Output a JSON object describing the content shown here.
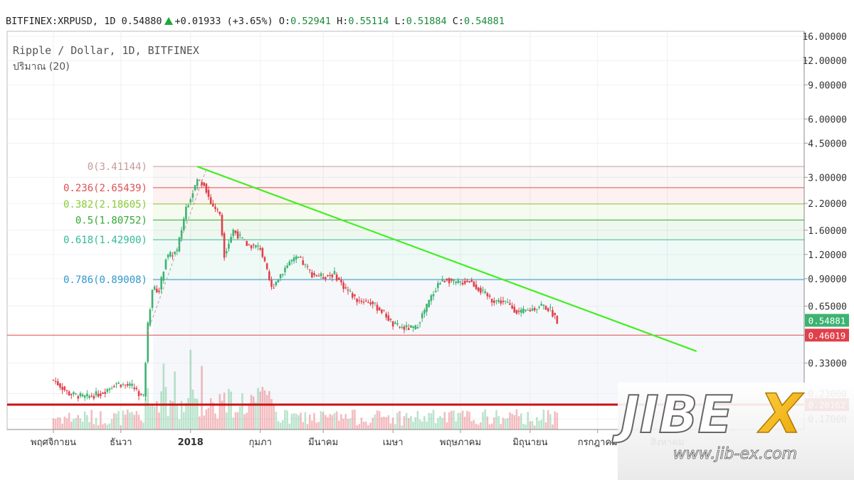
{
  "header": {
    "symbol": "BITFINEX:XRPUSD,",
    "interval": "1D",
    "last": "0.54880",
    "change": "+0.01933",
    "change_pct": "(+3.65%)",
    "o_label": "O:",
    "o": "0.52941",
    "h_label": "H:",
    "h": "0.55114",
    "l_label": "L:",
    "l": "0.51884",
    "c_label": "C:",
    "c": "0.54881"
  },
  "legend": {
    "title": "Ripple / Dollar, 1D, BITFINEX",
    "volume": "ปริมาณ (20)"
  },
  "colors": {
    "up": "#3cb371",
    "down": "#e0404a",
    "trendline": "#44ee22",
    "support_top": "#e06060",
    "support_bottom": "#cc1111"
  },
  "chart_data": {
    "type": "candlestick",
    "y_scale": "log",
    "ylim": [
      0.15,
      17
    ],
    "y_ticks": [
      "16.00000",
      "12.00000",
      "9.00000",
      "6.00000",
      "4.50000",
      "3.00000",
      "2.20000",
      "1.60000",
      "1.20000",
      "0.90000",
      "0.65000",
      "0.33000",
      "0.23000",
      "0.17000"
    ],
    "y_tick_values": [
      16,
      12,
      9,
      6,
      4.5,
      3,
      2.2,
      1.6,
      1.2,
      0.9,
      0.65,
      0.33,
      0.23,
      0.17
    ],
    "x_ticks": [
      "พฤศจิกายน",
      "ธันวา",
      "2018",
      "กุมภา",
      "มีนาคม",
      "เมษา",
      "พฤษภาคม",
      "มิถุนายน",
      "กรกฎาคม",
      "สิงหาคม"
    ],
    "x_tick_days": [
      0,
      30,
      61,
      92,
      120,
      151,
      181,
      212,
      242,
      273
    ],
    "price_labels": [
      {
        "text": "0.54881",
        "value": 0.54881,
        "color": "#3cb371"
      },
      {
        "text": "0.46019",
        "value": 0.46019,
        "color": "#e0404a"
      },
      {
        "text": "0.20162",
        "value": 0.20162,
        "color": "#cc1111"
      }
    ],
    "fib_levels": [
      {
        "label": "0(3.41144)",
        "value": 3.41144,
        "color": "#c89a9a"
      },
      {
        "label": "0.236(2.65439)",
        "value": 2.65439,
        "color": "#e05050"
      },
      {
        "label": "0.382(2.18605)",
        "value": 2.18605,
        "color": "#88cc33"
      },
      {
        "label": "0.5(1.80752)",
        "value": 1.80752,
        "color": "#33aa33"
      },
      {
        "label": "0.618(1.42900)",
        "value": 1.429,
        "color": "#33bb99"
      },
      {
        "label": "0.786(0.89008)",
        "value": 0.89008,
        "color": "#3399cc"
      }
    ],
    "support_lines": [
      {
        "value": 0.46019,
        "color": "#e06060"
      },
      {
        "value": 0.20162,
        "color": "#cc1111"
      }
    ],
    "trendline": {
      "start": {
        "date": "2018-01-04",
        "price": 3.41
      },
      "end": {
        "date": "2018-08-14",
        "price": 0.38
      }
    },
    "series": [
      {
        "date": "2017-11-01",
        "price": 0.27
      },
      {
        "date": "2017-11-08",
        "price": 0.23
      },
      {
        "date": "2017-11-15",
        "price": 0.22
      },
      {
        "date": "2017-11-22",
        "price": 0.23
      },
      {
        "date": "2017-11-29",
        "price": 0.26
      },
      {
        "date": "2017-12-06",
        "price": 0.25
      },
      {
        "date": "2017-12-11",
        "price": 0.22
      },
      {
        "date": "2017-12-13",
        "price": 0.52
      },
      {
        "date": "2017-12-15",
        "price": 0.8
      },
      {
        "date": "2017-12-18",
        "price": 0.78
      },
      {
        "date": "2017-12-21",
        "price": 1.15
      },
      {
        "date": "2017-12-26",
        "price": 1.25
      },
      {
        "date": "2017-12-30",
        "price": 2.1
      },
      {
        "date": "2018-01-04",
        "price": 2.9
      },
      {
        "date": "2018-01-07",
        "price": 2.8
      },
      {
        "date": "2018-01-10",
        "price": 2.2
      },
      {
        "date": "2018-01-14",
        "price": 1.95
      },
      {
        "date": "2018-01-16",
        "price": 1.2
      },
      {
        "date": "2018-01-20",
        "price": 1.6
      },
      {
        "date": "2018-01-26",
        "price": 1.35
      },
      {
        "date": "2018-02-01",
        "price": 1.3
      },
      {
        "date": "2018-02-06",
        "price": 0.8
      },
      {
        "date": "2018-02-10",
        "price": 0.95
      },
      {
        "date": "2018-02-14",
        "price": 1.1
      },
      {
        "date": "2018-02-18",
        "price": 1.15
      },
      {
        "date": "2018-02-24",
        "price": 0.95
      },
      {
        "date": "2018-03-01",
        "price": 0.92
      },
      {
        "date": "2018-03-06",
        "price": 0.95
      },
      {
        "date": "2018-03-10",
        "price": 0.82
      },
      {
        "date": "2018-03-16",
        "price": 0.7
      },
      {
        "date": "2018-03-22",
        "price": 0.68
      },
      {
        "date": "2018-03-28",
        "price": 0.6
      },
      {
        "date": "2018-04-01",
        "price": 0.52
      },
      {
        "date": "2018-04-06",
        "price": 0.5
      },
      {
        "date": "2018-04-11",
        "price": 0.5
      },
      {
        "date": "2018-04-16",
        "price": 0.65
      },
      {
        "date": "2018-04-21",
        "price": 0.85
      },
      {
        "date": "2018-04-25",
        "price": 0.9
      },
      {
        "date": "2018-04-29",
        "price": 0.85
      },
      {
        "date": "2018-05-05",
        "price": 0.88
      },
      {
        "date": "2018-05-10",
        "price": 0.78
      },
      {
        "date": "2018-05-15",
        "price": 0.7
      },
      {
        "date": "2018-05-21",
        "price": 0.68
      },
      {
        "date": "2018-05-27",
        "price": 0.6
      },
      {
        "date": "2018-06-01",
        "price": 0.62
      },
      {
        "date": "2018-06-06",
        "price": 0.66
      },
      {
        "date": "2018-06-10",
        "price": 0.62
      },
      {
        "date": "2018-06-13",
        "price": 0.55
      }
    ]
  },
  "watermark": {
    "brand": "JIBEX",
    "url": "www.jib-ex.com"
  }
}
